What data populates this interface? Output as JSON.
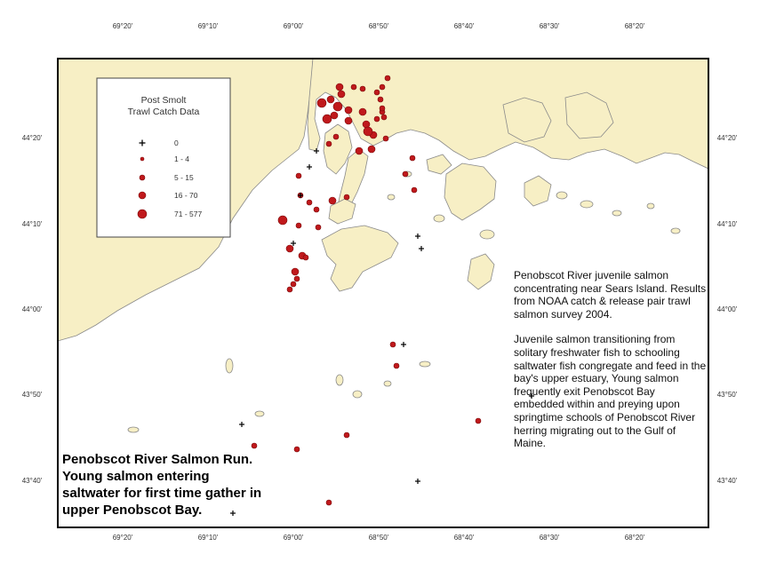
{
  "map": {
    "longitude_ticks": [
      "69°20'",
      "69°10'",
      "69°00'",
      "68°50'",
      "68°40'",
      "68°30'",
      "68°20'"
    ],
    "latitude_ticks": [
      "44°20'",
      "44°10'",
      "44°00'",
      "43°50'",
      "43°40'"
    ],
    "colors": {
      "land": "#f7efc5",
      "water": "#ffffff",
      "coastline": "#8a8a8a",
      "catch_marker": "#c0191c",
      "zero_marker": "#000000",
      "frame": "#000000"
    }
  },
  "legend": {
    "title_line1": "Post Smolt",
    "title_line2": "Trawl Catch Data",
    "items": [
      {
        "label": "0",
        "symbol": "cross"
      },
      {
        "label": "1 - 4",
        "symbol": "dot-xs"
      },
      {
        "label": "5 - 15",
        "symbol": "dot-s"
      },
      {
        "label": "16 - 70",
        "symbol": "dot-m"
      },
      {
        "label": "71 - 577",
        "symbol": "dot-l"
      }
    ]
  },
  "notes": {
    "paragraph1": "Penobscot River juvenile salmon concentrating near Sears Island. Results from NOAA catch & release pair trawl salmon survey 2004.",
    "paragraph2": "Juvenile salmon transitioning from solitary freshwater  fish to schooling saltwater fish congregate and feed in the bay's upper estuary,  Young salmon frequently exit Penobscot Bay embedded within and preying upon springtime schools of Penobscot River herring migrating out to the Gulf of Maine."
  },
  "caption": {
    "line1": "Penobscot River Salmon Run.",
    "line2": "Young salmon entering",
    "line3": "saltwater for first time gather in",
    "line4": "upper Penobscot Bay."
  }
}
